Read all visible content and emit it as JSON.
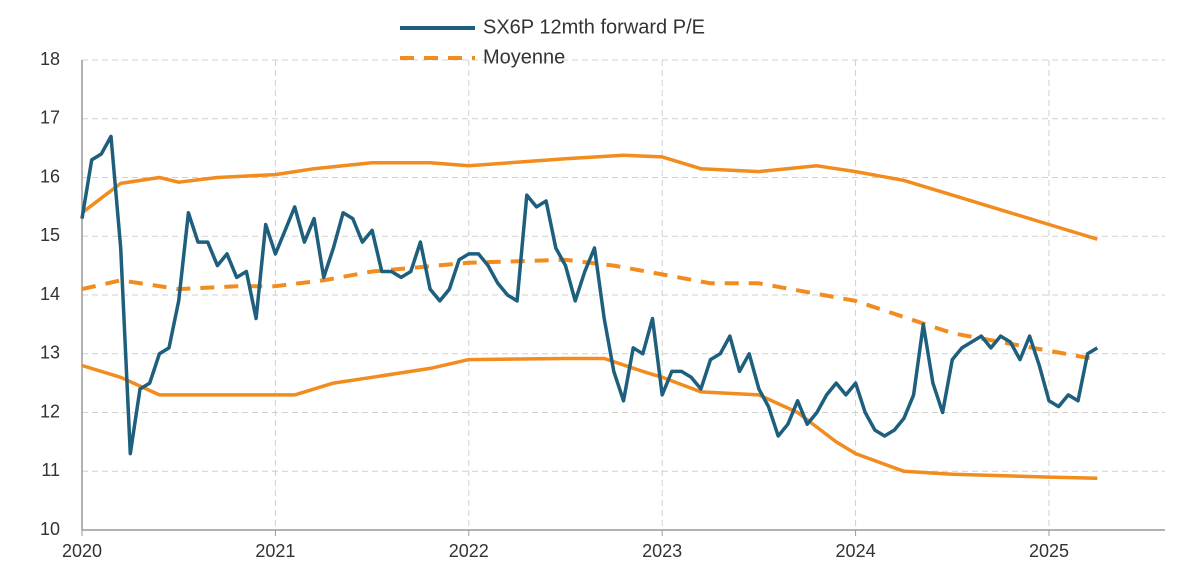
{
  "chart_data": {
    "type": "line",
    "xlim": [
      2020,
      2025.6
    ],
    "xticks": [
      2020,
      2021,
      2022,
      2023,
      2024,
      2025
    ],
    "ylim": [
      10,
      18
    ],
    "yticks": [
      10,
      11,
      12,
      13,
      14,
      15,
      16,
      17,
      18
    ],
    "grid": true,
    "legend": "top",
    "series": [
      {
        "name": "SX6P 12mth forward P/E",
        "color": "#1d5f7d",
        "dashed": false,
        "x": [
          2020,
          2020.05,
          2020.1,
          2020.15,
          2020.2,
          2020.25,
          2020.3,
          2020.35,
          2020.4,
          2020.45,
          2020.5,
          2020.55,
          2020.6,
          2020.65,
          2020.7,
          2020.75,
          2020.8,
          2020.85,
          2020.9,
          2020.95,
          2021,
          2021.05,
          2021.1,
          2021.15,
          2021.2,
          2021.25,
          2021.3,
          2021.35,
          2021.4,
          2021.45,
          2021.5,
          2021.55,
          2021.6,
          2021.65,
          2021.7,
          2021.75,
          2021.8,
          2021.85,
          2021.9,
          2021.95,
          2022,
          2022.05,
          2022.1,
          2022.15,
          2022.2,
          2022.25,
          2022.3,
          2022.35,
          2022.4,
          2022.45,
          2022.5,
          2022.55,
          2022.6,
          2022.65,
          2022.7,
          2022.75,
          2022.8,
          2022.85,
          2022.9,
          2022.95,
          2023,
          2023.05,
          2023.1,
          2023.15,
          2023.2,
          2023.25,
          2023.3,
          2023.35,
          2023.4,
          2023.45,
          2023.5,
          2023.55,
          2023.6,
          2023.65,
          2023.7,
          2023.75,
          2023.8,
          2023.85,
          2023.9,
          2023.95,
          2024,
          2024.05,
          2024.1,
          2024.15,
          2024.2,
          2024.25,
          2024.3,
          2024.35,
          2024.4,
          2024.45,
          2024.5,
          2024.55,
          2024.6,
          2024.65,
          2024.7,
          2024.75,
          2024.8,
          2024.85,
          2024.9,
          2024.95,
          2025,
          2025.05,
          2025.1,
          2025.15,
          2025.2,
          2025.25
        ],
        "values": [
          15.3,
          16.3,
          16.4,
          16.7,
          14.8,
          11.3,
          12.4,
          12.5,
          13.0,
          13.1,
          13.9,
          15.4,
          14.9,
          14.9,
          14.5,
          14.7,
          14.3,
          14.4,
          13.6,
          15.2,
          14.7,
          15.1,
          15.5,
          14.9,
          15.3,
          14.3,
          14.8,
          15.4,
          15.3,
          14.9,
          15.1,
          14.4,
          14.4,
          14.3,
          14.4,
          14.9,
          14.1,
          13.9,
          14.1,
          14.6,
          14.7,
          14.7,
          14.5,
          14.2,
          14.0,
          13.9,
          15.7,
          15.5,
          15.6,
          14.8,
          14.5,
          13.9,
          14.4,
          14.8,
          13.6,
          12.7,
          12.2,
          13.1,
          13.0,
          13.6,
          12.3,
          12.7,
          12.7,
          12.6,
          12.4,
          12.9,
          13.0,
          13.3,
          12.7,
          13.0,
          12.4,
          12.1,
          11.6,
          11.8,
          12.2,
          11.8,
          12.0,
          12.3,
          12.5,
          12.3,
          12.5,
          12.0,
          11.7,
          11.6,
          11.7,
          11.9,
          12.3,
          13.5,
          12.5,
          12.0,
          12.9,
          13.1,
          13.2,
          13.3,
          13.1,
          13.3,
          13.2,
          12.9,
          13.3,
          12.8,
          12.2,
          12.1,
          12.3,
          12.2,
          13.0,
          13.1
        ]
      },
      {
        "name": "Moyenne",
        "color": "#f28c1e",
        "dashed": true,
        "x": [
          2020,
          2020.2,
          2020.5,
          2020.8,
          2021,
          2021.25,
          2021.5,
          2022,
          2022.5,
          2022.75,
          2023,
          2023.25,
          2023.5,
          2024,
          2024.5,
          2025,
          2025.25
        ],
        "values": [
          14.1,
          14.25,
          14.1,
          14.15,
          14.15,
          14.25,
          14.4,
          14.55,
          14.6,
          14.5,
          14.35,
          14.2,
          14.2,
          13.9,
          13.35,
          13.05,
          12.9
        ]
      },
      {
        "color": "#f28c1e",
        "dashed": false,
        "x": [
          2020,
          2020.2,
          2020.4,
          2020.5,
          2020.7,
          2021,
          2021.2,
          2021.5,
          2021.8,
          2022,
          2022.5,
          2022.8,
          2023,
          2023.2,
          2023.5,
          2023.8,
          2024,
          2024.25,
          2024.5,
          2024.75,
          2025,
          2025.25
        ],
        "values": [
          15.4,
          15.9,
          16.0,
          15.92,
          16.0,
          16.05,
          16.15,
          16.25,
          16.25,
          16.2,
          16.32,
          16.38,
          16.35,
          16.15,
          16.1,
          16.2,
          16.1,
          15.95,
          15.7,
          15.45,
          15.2,
          14.95
        ]
      },
      {
        "color": "#f28c1e",
        "dashed": false,
        "x": [
          2020,
          2020.2,
          2020.4,
          2021,
          2021.1,
          2021.3,
          2021.5,
          2021.8,
          2022,
          2022.5,
          2022.7,
          2022.9,
          2023,
          2023.2,
          2023.5,
          2023.7,
          2023.9,
          2024,
          2024.25,
          2024.5,
          2025,
          2025.25
        ],
        "values": [
          12.8,
          12.6,
          12.3,
          12.3,
          12.3,
          12.5,
          12.6,
          12.75,
          12.9,
          12.92,
          12.92,
          12.7,
          12.6,
          12.35,
          12.3,
          12.0,
          11.5,
          11.3,
          11.0,
          10.95,
          10.9,
          10.88
        ]
      }
    ]
  }
}
